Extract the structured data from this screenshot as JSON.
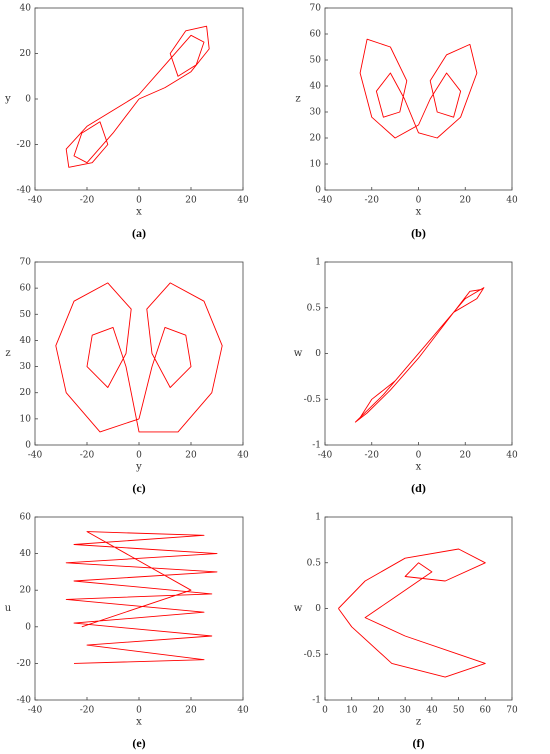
{
  "chart_data": [
    {
      "type": "line",
      "caption": "(a)",
      "x_label": "x",
      "y_label": "y",
      "xlim": [
        -40,
        40
      ],
      "xticks": [
        -40,
        -20,
        0,
        20,
        40
      ],
      "ylim": [
        -40,
        40
      ],
      "yticks": [
        -40,
        -20,
        0,
        20,
        40
      ],
      "x": [
        0,
        10,
        20,
        27,
        26,
        18,
        12,
        15,
        22,
        25,
        20,
        10,
        0,
        -10,
        -20,
        -28,
        -27,
        -18,
        -12,
        -15,
        -22,
        -25,
        -20,
        -10,
        0
      ],
      "series": [
        {
          "color": "#ff0000",
          "values": [
            0,
            5,
            12,
            22,
            32,
            30,
            20,
            10,
            15,
            25,
            28,
            15,
            2,
            -5,
            -12,
            -22,
            -30,
            -28,
            -20,
            -10,
            -15,
            -25,
            -28,
            -15,
            0
          ]
        }
      ]
    },
    {
      "type": "line",
      "caption": "(b)",
      "x_label": "x",
      "y_label": "z",
      "xlim": [
        -40,
        40
      ],
      "xticks": [
        -40,
        -20,
        0,
        20,
        40
      ],
      "ylim": [
        0,
        70
      ],
      "yticks": [
        0,
        10,
        20,
        30,
        40,
        50,
        60,
        70
      ],
      "x": [
        0,
        -10,
        -20,
        -25,
        -22,
        -12,
        -5,
        -8,
        -15,
        -18,
        -12,
        -6,
        0,
        8,
        18,
        25,
        22,
        12,
        5,
        8,
        15,
        18,
        12,
        5,
        0
      ],
      "series": [
        {
          "color": "#ff0000",
          "values": [
            25,
            20,
            28,
            45,
            58,
            55,
            42,
            30,
            28,
            38,
            45,
            35,
            22,
            20,
            28,
            45,
            56,
            52,
            42,
            30,
            28,
            38,
            45,
            35,
            25
          ]
        }
      ]
    },
    {
      "type": "line",
      "caption": "(c)",
      "x_label": "y",
      "y_label": "z",
      "xlim": [
        -40,
        40
      ],
      "xticks": [
        -40,
        -20,
        0,
        20,
        40
      ],
      "ylim": [
        0,
        70
      ],
      "yticks": [
        0,
        10,
        20,
        30,
        40,
        50,
        60,
        70
      ],
      "x": [
        0,
        -15,
        -28,
        -32,
        -25,
        -12,
        -3,
        -5,
        -12,
        -20,
        -18,
        -10,
        -5,
        0,
        15,
        28,
        32,
        25,
        12,
        3,
        5,
        12,
        20,
        18,
        10,
        5,
        0
      ],
      "series": [
        {
          "color": "#ff0000",
          "values": [
            10,
            5,
            20,
            38,
            55,
            62,
            52,
            35,
            22,
            30,
            42,
            45,
            30,
            5,
            5,
            20,
            38,
            55,
            62,
            52,
            35,
            22,
            30,
            42,
            45,
            30,
            10
          ]
        }
      ]
    },
    {
      "type": "line",
      "caption": "(d)",
      "x_label": "x",
      "y_label": "w",
      "xlim": [
        -40,
        40
      ],
      "xticks": [
        -40,
        -20,
        0,
        20,
        40
      ],
      "ylim": [
        -1,
        1
      ],
      "yticks": [
        -1,
        -0.5,
        0,
        0.5,
        1
      ],
      "x": [
        -25,
        -20,
        -10,
        0,
        10,
        20,
        28,
        25,
        15,
        5,
        -5,
        -15,
        -27,
        -22,
        -12,
        0,
        12,
        22,
        27
      ],
      "series": [
        {
          "color": "#ff0000",
          "values": [
            -0.7,
            -0.5,
            -0.3,
            0,
            0.3,
            0.6,
            0.72,
            0.6,
            0.45,
            0.15,
            -0.15,
            -0.45,
            -0.75,
            -0.65,
            -0.4,
            -0.05,
            0.35,
            0.68,
            0.7
          ]
        }
      ]
    },
    {
      "type": "line",
      "caption": "(e)",
      "x_label": "x",
      "y_label": "u",
      "xlim": [
        -40,
        40
      ],
      "xticks": [
        -40,
        -20,
        0,
        20,
        40
      ],
      "ylim": [
        -40,
        60
      ],
      "yticks": [
        -40,
        -20,
        0,
        20,
        40,
        60
      ],
      "x": [
        -25,
        25,
        -20,
        28,
        -25,
        25,
        -28,
        28,
        -25,
        30,
        -28,
        30,
        -25,
        25,
        -20,
        20,
        -22
      ],
      "series": [
        {
          "color": "#ff0000",
          "values": [
            -20,
            -18,
            -10,
            -5,
            2,
            8,
            15,
            18,
            25,
            30,
            35,
            40,
            45,
            50,
            52,
            20,
            0
          ]
        }
      ]
    },
    {
      "type": "line",
      "caption": "(f)",
      "x_label": "z",
      "y_label": "w",
      "xlim": [
        0,
        70
      ],
      "xticks": [
        0,
        10,
        20,
        30,
        40,
        50,
        60,
        70
      ],
      "ylim": [
        -1,
        1
      ],
      "yticks": [
        -1,
        -0.5,
        0,
        0.5,
        1
      ],
      "x": [
        5,
        15,
        30,
        50,
        60,
        45,
        30,
        35,
        40,
        25,
        15,
        30,
        50,
        60,
        45,
        25,
        10,
        5
      ],
      "series": [
        {
          "color": "#ff0000",
          "values": [
            0,
            0.3,
            0.55,
            0.65,
            0.5,
            0.3,
            0.35,
            0.5,
            0.4,
            0.1,
            -0.1,
            -0.3,
            -0.5,
            -0.6,
            -0.75,
            -0.6,
            -0.2,
            0
          ]
        }
      ]
    }
  ]
}
